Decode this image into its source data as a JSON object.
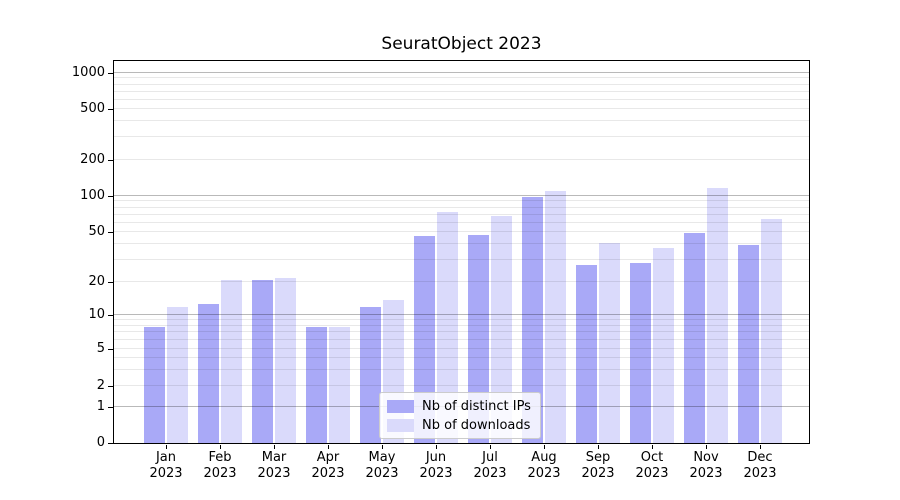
{
  "window": {
    "background": "#ffffff"
  },
  "chart_data": {
    "type": "bar",
    "title": "SeuratObject 2023",
    "categories": [
      "Jan 2023",
      "Feb 2023",
      "Mar 2023",
      "Apr 2023",
      "May 2023",
      "Jun 2023",
      "Jul 2023",
      "Aug 2023",
      "Sep 2023",
      "Oct 2023",
      "Nov 2023",
      "Dec 2023"
    ],
    "x_tick_line1": [
      "Jan",
      "Feb",
      "Mar",
      "Apr",
      "May",
      "Jun",
      "Jul",
      "Aug",
      "Sep",
      "Oct",
      "Nov",
      "Dec"
    ],
    "x_tick_line2": [
      "2023",
      "2023",
      "2023",
      "2023",
      "2023",
      "2023",
      "2023",
      "2023",
      "2023",
      "2023",
      "2023",
      "2023"
    ],
    "series": [
      {
        "name": "Nb of distinct IPs",
        "color": "#a9a9f7",
        "values": [
          8,
          13,
          21,
          8,
          12,
          47,
          48,
          100,
          28,
          29,
          50,
          40
        ]
      },
      {
        "name": "Nb of downloads",
        "color": "#dadafb",
        "values": [
          12,
          21,
          22,
          8,
          14,
          75,
          70,
          113,
          42,
          38,
          120,
          65
        ]
      }
    ],
    "xlabel": "",
    "ylabel": "",
    "yscale": "symlog",
    "yticks": [
      0,
      1,
      2,
      5,
      10,
      20,
      50,
      100,
      200,
      500,
      1000
    ],
    "ytick_labels": [
      "0",
      "1",
      "2",
      "5",
      "10",
      "20",
      "50",
      "100",
      "200",
      "500",
      "1000"
    ],
    "minor_grid_values": [
      3,
      4,
      6,
      7,
      8,
      9,
      30,
      40,
      60,
      70,
      80,
      90,
      300,
      400,
      600,
      700,
      800,
      900
    ],
    "major_grid_values": [
      1,
      10,
      100,
      1000
    ],
    "ylim": [
      0,
      1250
    ],
    "grid": "horizontal major+minor",
    "legend_position": "lower center",
    "colors": {
      "ips_bar": "#a9a9f7",
      "downloads_bar": "#dadafb",
      "major_gridline": "#b9b9b9",
      "minor_gridline": "#e8e8e8",
      "axis": "#000000"
    }
  },
  "legend": {
    "items": [
      {
        "label": "Nb of distinct IPs"
      },
      {
        "label": "Nb of downloads"
      }
    ]
  }
}
